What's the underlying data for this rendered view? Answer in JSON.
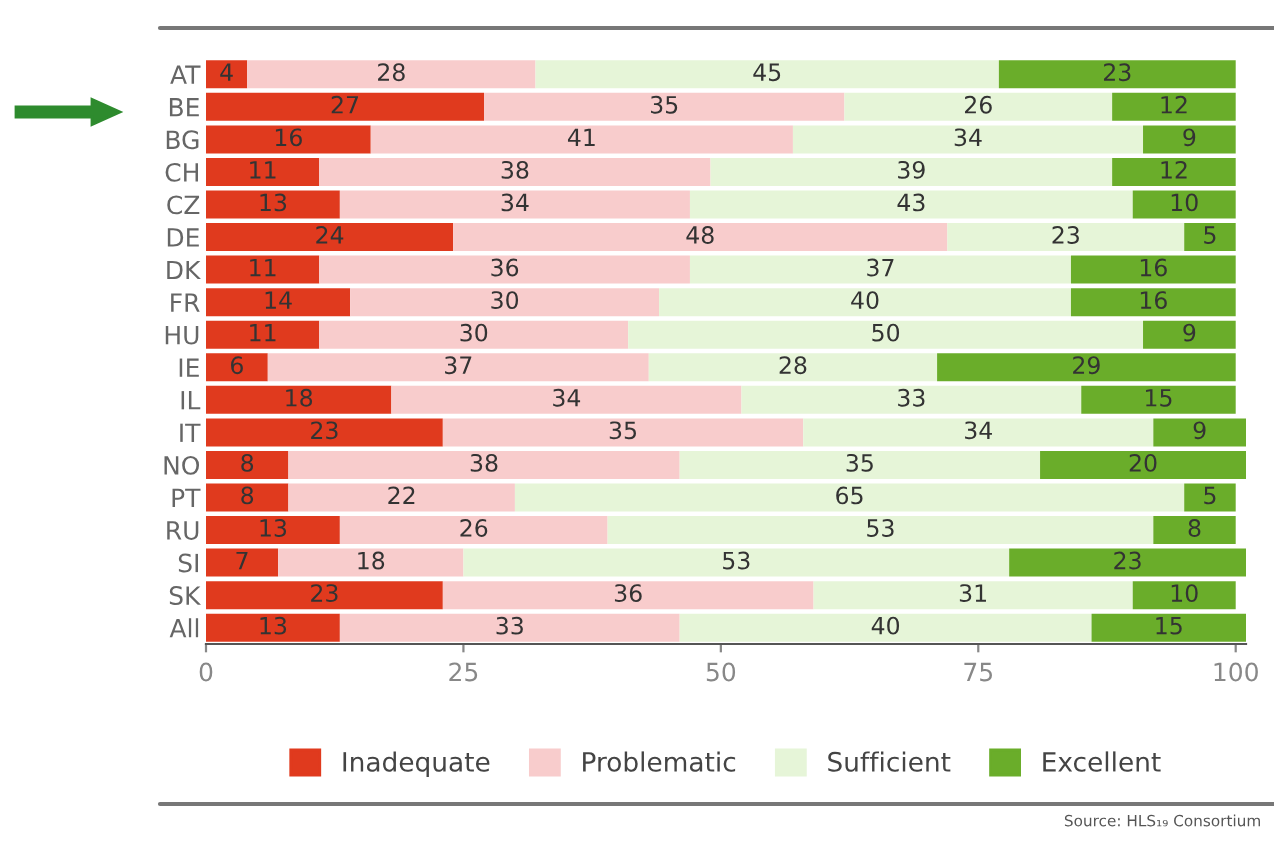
{
  "chart_data": {
    "type": "bar",
    "orientation": "horizontal",
    "stacked": true,
    "categories": [
      "AT",
      "BE",
      "BG",
      "CH",
      "CZ",
      "DE",
      "DK",
      "FR",
      "HU",
      "IE",
      "IL",
      "IT",
      "NO",
      "PT",
      "RU",
      "SI",
      "SK",
      "All"
    ],
    "series": [
      {
        "name": "Inadequate",
        "color": "#e03a1e",
        "values": [
          4,
          27,
          16,
          11,
          13,
          24,
          11,
          14,
          11,
          6,
          18,
          23,
          8,
          8,
          13,
          7,
          23,
          13
        ]
      },
      {
        "name": "Problematic",
        "color": "#f8cccc",
        "values": [
          28,
          35,
          41,
          38,
          34,
          48,
          36,
          30,
          30,
          37,
          34,
          35,
          38,
          22,
          26,
          18,
          36,
          33
        ]
      },
      {
        "name": "Sufficient",
        "color": "#e6f5d8",
        "values": [
          45,
          26,
          34,
          39,
          43,
          23,
          37,
          40,
          50,
          28,
          33,
          34,
          35,
          65,
          53,
          53,
          31,
          40
        ]
      },
      {
        "name": "Excellent",
        "color": "#6aad2a",
        "values": [
          23,
          12,
          9,
          12,
          10,
          5,
          16,
          16,
          9,
          29,
          15,
          9,
          20,
          5,
          8,
          23,
          10,
          15
        ]
      }
    ],
    "xlim": [
      0,
      101
    ],
    "xticks": [
      0,
      25,
      50,
      75,
      100
    ],
    "data_labels": true,
    "grid": false,
    "legend": "bottom",
    "annotations": [
      "Source: HLS₁₉ Consortium"
    ]
  }
}
